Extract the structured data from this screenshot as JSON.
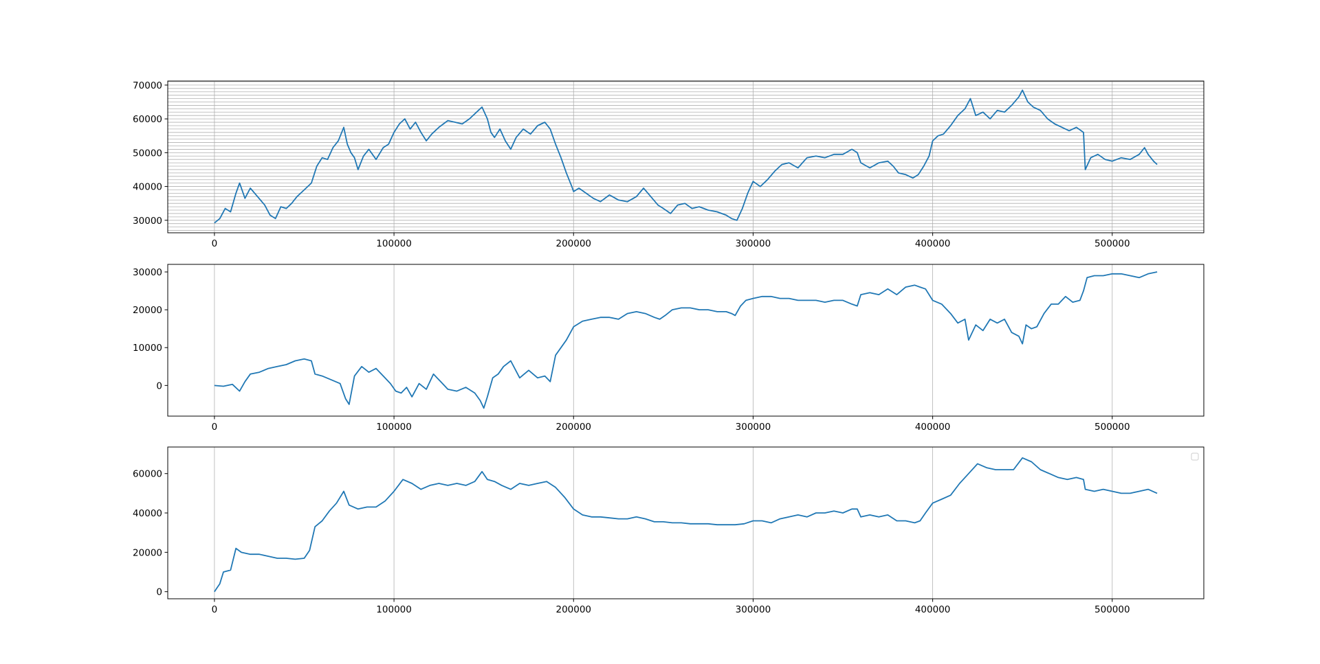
{
  "figure": {
    "background": "#ffffff",
    "line_color": "#1f77b4",
    "grid_color": "#b0b0b0"
  },
  "chart_data": [
    {
      "type": "line",
      "xlim": [
        -26000,
        551000
      ],
      "ylim": [
        26300,
        71200
      ],
      "xticks": [
        0,
        100000,
        200000,
        300000,
        400000,
        500000
      ],
      "xtick_labels": [
        "0",
        "100000",
        "200000",
        "300000",
        "400000",
        "500000"
      ],
      "yticks": [
        30000,
        40000,
        50000,
        60000,
        70000
      ],
      "ytick_labels": [
        "30000",
        "40000",
        "50000",
        "60000",
        "70000"
      ],
      "grid": "x major + dense y minor",
      "legend": "none",
      "series": [
        {
          "x": [
            0,
            3000,
            6000,
            9000,
            12000,
            14000,
            17000,
            20000,
            24000,
            28000,
            31000,
            34000,
            37000,
            40000,
            43000,
            46000,
            50000,
            54000,
            57000,
            60000,
            63000,
            66000,
            69000,
            72000,
            74000,
            76000,
            78000,
            80000,
            83000,
            86000,
            90000,
            94000,
            97000,
            100000,
            103000,
            106000,
            109000,
            112000,
            115000,
            118000,
            121000,
            125000,
            130000,
            134000,
            138000,
            142000,
            146000,
            149000,
            152000,
            154000,
            156000,
            159000,
            162000,
            165000,
            168000,
            172000,
            176000,
            180000,
            184000,
            187000,
            190000,
            193000,
            196000,
            199000,
            200000,
            203000,
            207000,
            211000,
            215000,
            220000,
            225000,
            230000,
            235000,
            239000,
            243000,
            247000,
            250000,
            254000,
            258000,
            262000,
            266000,
            270000,
            275000,
            280000,
            285000,
            288000,
            291000,
            294000,
            297000,
            300000,
            304000,
            308000,
            312000,
            316000,
            320000,
            325000,
            330000,
            335000,
            340000,
            345000,
            350000,
            355000,
            358000,
            360000,
            365000,
            370000,
            375000,
            378000,
            381000,
            385000,
            389000,
            392000,
            395000,
            398000,
            400000,
            403000,
            406000,
            410000,
            414000,
            418000,
            421000,
            424000,
            428000,
            432000,
            436000,
            440000,
            444000,
            448000,
            450000,
            453000,
            456000,
            460000,
            464000,
            468000,
            472000,
            476000,
            480000,
            484000,
            485000,
            488000,
            492000,
            496000,
            500000,
            505000,
            510000,
            515000,
            518000,
            520000,
            523000,
            525000
          ],
          "y": [
            29200,
            30500,
            33500,
            32500,
            38000,
            41000,
            36500,
            39500,
            37000,
            34500,
            31500,
            30500,
            34000,
            33500,
            35000,
            37000,
            39000,
            41000,
            46000,
            48500,
            48000,
            51500,
            53500,
            57500,
            52500,
            50000,
            48500,
            45000,
            49000,
            51000,
            48000,
            51500,
            52500,
            56000,
            58500,
            60000,
            57000,
            59000,
            56000,
            53500,
            55500,
            57500,
            59500,
            59000,
            58500,
            60000,
            62000,
            63500,
            60000,
            56000,
            54500,
            57000,
            53500,
            51000,
            54500,
            57000,
            55500,
            58000,
            59000,
            57000,
            52500,
            48500,
            44000,
            40000,
            38500,
            39500,
            38000,
            36500,
            35500,
            37500,
            36000,
            35500,
            37000,
            39500,
            37000,
            34500,
            33500,
            32000,
            34500,
            35000,
            33500,
            34000,
            33000,
            32500,
            31500,
            30500,
            30000,
            33500,
            38000,
            41500,
            40000,
            42000,
            44500,
            46500,
            47000,
            45500,
            48500,
            49000,
            48500,
            49500,
            49500,
            51000,
            50000,
            47000,
            45500,
            47000,
            47500,
            46000,
            44000,
            43500,
            42500,
            43500,
            46000,
            49000,
            53500,
            55000,
            55500,
            58000,
            61000,
            63000,
            66000,
            61000,
            62000,
            60000,
            62500,
            62000,
            64000,
            66500,
            68500,
            65000,
            63500,
            62500,
            60000,
            58500,
            57500,
            56500,
            57500,
            56000,
            45000,
            48500,
            49500,
            48000,
            47500,
            48500,
            48000,
            49500,
            51500,
            49500,
            47500,
            46500
          ]
        }
      ]
    },
    {
      "type": "line",
      "xlim": [
        -26000,
        551000
      ],
      "ylim": [
        -8100,
        32000
      ],
      "xticks": [
        0,
        100000,
        200000,
        300000,
        400000,
        500000
      ],
      "xtick_labels": [
        "0",
        "100000",
        "200000",
        "300000",
        "400000",
        "500000"
      ],
      "yticks": [
        0,
        10000,
        20000,
        30000
      ],
      "ytick_labels": [
        "0",
        "10000",
        "20000",
        "30000"
      ],
      "grid": "x major",
      "legend": "none",
      "series": [
        {
          "x": [
            0,
            5000,
            10000,
            14000,
            17000,
            20000,
            25000,
            30000,
            35000,
            40000,
            45000,
            50000,
            54000,
            56000,
            60000,
            65000,
            70000,
            73000,
            75000,
            78000,
            82000,
            86000,
            90000,
            95000,
            98000,
            101000,
            104000,
            107000,
            110000,
            114000,
            118000,
            122000,
            126000,
            130000,
            135000,
            140000,
            145000,
            148000,
            150000,
            152000,
            155000,
            158000,
            161000,
            165000,
            170000,
            175000,
            180000,
            184000,
            187000,
            190000,
            193000,
            196000,
            200000,
            205000,
            210000,
            215000,
            220000,
            225000,
            230000,
            235000,
            240000,
            245000,
            248000,
            251000,
            255000,
            260000,
            265000,
            270000,
            275000,
            280000,
            285000,
            288000,
            290000,
            293000,
            296000,
            300000,
            305000,
            310000,
            315000,
            320000,
            325000,
            330000,
            335000,
            340000,
            345000,
            350000,
            355000,
            358000,
            360000,
            365000,
            370000,
            375000,
            380000,
            385000,
            390000,
            393000,
            396000,
            400000,
            405000,
            410000,
            414000,
            418000,
            420000,
            424000,
            428000,
            432000,
            436000,
            440000,
            444000,
            448000,
            450000,
            452000,
            455000,
            458000,
            462000,
            466000,
            470000,
            474000,
            478000,
            482000,
            484000,
            486000,
            490000,
            495000,
            500000,
            505000,
            510000,
            515000,
            520000,
            525000
          ],
          "y": [
            0,
            -200,
            300,
            -1500,
            1000,
            3000,
            3500,
            4500,
            5000,
            5500,
            6500,
            7000,
            6500,
            3000,
            2500,
            1500,
            500,
            -3500,
            -5000,
            2500,
            5000,
            3500,
            4500,
            2000,
            500,
            -1500,
            -2000,
            -500,
            -3000,
            500,
            -1000,
            3000,
            1000,
            -1000,
            -1500,
            -500,
            -2000,
            -4000,
            -6000,
            -3000,
            2000,
            3000,
            5000,
            6500,
            2000,
            4000,
            2000,
            2500,
            1000,
            8000,
            10000,
            12000,
            15500,
            17000,
            17500,
            18000,
            18000,
            17500,
            19000,
            19500,
            19000,
            18000,
            17500,
            18500,
            20000,
            20500,
            20500,
            20000,
            20000,
            19500,
            19500,
            19000,
            18500,
            21000,
            22500,
            23000,
            23500,
            23500,
            23000,
            23000,
            22500,
            22500,
            22500,
            22000,
            22500,
            22500,
            21500,
            21000,
            24000,
            24500,
            24000,
            25500,
            24000,
            26000,
            26500,
            26000,
            25500,
            22500,
            21500,
            19000,
            16500,
            17500,
            12000,
            16000,
            14500,
            17500,
            16500,
            17500,
            14000,
            13000,
            11000,
            16000,
            15000,
            15500,
            19000,
            21500,
            21500,
            23500,
            22000,
            22500,
            25000,
            28500,
            29000,
            29000,
            29500,
            29500,
            29000,
            28500,
            29500,
            30000
          ]
        }
      ]
    },
    {
      "type": "line",
      "xlim": [
        -26000,
        551000
      ],
      "ylim": [
        -3600,
        73500
      ],
      "xticks": [
        0,
        100000,
        200000,
        300000,
        400000,
        500000
      ],
      "xtick_labels": [
        "0",
        "100000",
        "200000",
        "300000",
        "400000",
        "500000"
      ],
      "yticks": [
        0,
        20000,
        40000,
        60000
      ],
      "ytick_labels": [
        "0",
        "20000",
        "40000",
        "60000"
      ],
      "grid": "x major",
      "legend": "upper right, empty",
      "series": [
        {
          "x": [
            0,
            1500,
            3000,
            5000,
            9000,
            12000,
            15000,
            20000,
            25000,
            30000,
            35000,
            40000,
            45000,
            50000,
            53000,
            56000,
            60000,
            64000,
            68000,
            72000,
            75000,
            80000,
            85000,
            90000,
            95000,
            100000,
            105000,
            110000,
            115000,
            120000,
            125000,
            130000,
            135000,
            140000,
            145000,
            149000,
            152000,
            156000,
            160000,
            165000,
            170000,
            175000,
            180000,
            185000,
            190000,
            195000,
            200000,
            205000,
            210000,
            215000,
            220000,
            225000,
            230000,
            235000,
            240000,
            245000,
            250000,
            255000,
            260000,
            265000,
            270000,
            275000,
            280000,
            285000,
            290000,
            295000,
            300000,
            305000,
            310000,
            315000,
            320000,
            325000,
            330000,
            335000,
            340000,
            345000,
            350000,
            355000,
            358000,
            360000,
            365000,
            370000,
            375000,
            380000,
            385000,
            390000,
            393000,
            396000,
            400000,
            405000,
            410000,
            415000,
            420000,
            425000,
            430000,
            435000,
            440000,
            445000,
            450000,
            455000,
            460000,
            465000,
            470000,
            475000,
            480000,
            484000,
            485000,
            490000,
            495000,
            500000,
            505000,
            510000,
            515000,
            520000,
            525000
          ],
          "y": [
            0,
            2000,
            4000,
            10000,
            11000,
            22000,
            20000,
            19000,
            19000,
            18000,
            17000,
            17000,
            16500,
            17000,
            21000,
            33000,
            36000,
            41000,
            45000,
            51000,
            44000,
            42000,
            43000,
            43000,
            46000,
            51000,
            57000,
            55000,
            52000,
            54000,
            55000,
            54000,
            55000,
            54000,
            56000,
            61000,
            57000,
            56000,
            54000,
            52000,
            55000,
            54000,
            55000,
            56000,
            53000,
            48000,
            42000,
            39000,
            38000,
            38000,
            37500,
            37000,
            37000,
            38000,
            37000,
            35500,
            35500,
            35000,
            35000,
            34500,
            34500,
            34500,
            34000,
            34000,
            34000,
            34500,
            36000,
            36000,
            35000,
            37000,
            38000,
            39000,
            38000,
            40000,
            40000,
            41000,
            40000,
            42000,
            42000,
            38000,
            39000,
            38000,
            39000,
            36000,
            36000,
            35000,
            36000,
            40000,
            45000,
            47000,
            49000,
            55000,
            60000,
            65000,
            63000,
            62000,
            62000,
            62000,
            68000,
            66000,
            62000,
            60000,
            58000,
            57000,
            58000,
            57000,
            52000,
            51000,
            52000,
            51000,
            50000,
            50000,
            51000,
            52000,
            50000
          ]
        }
      ]
    }
  ]
}
